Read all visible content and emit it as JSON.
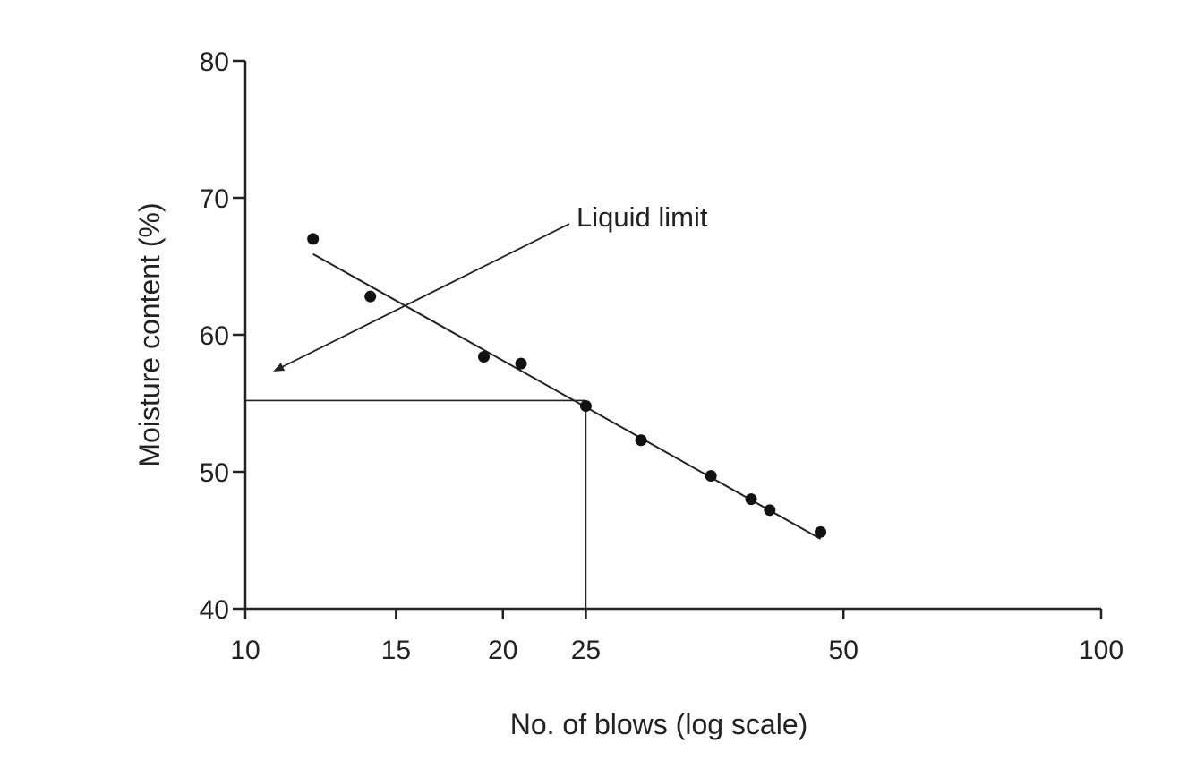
{
  "chart_data": {
    "type": "scatter",
    "title": "",
    "xlabel": "No. of blows (log scale)",
    "ylabel": "Moisture content (%)",
    "x_scale": "log",
    "xlim": [
      10,
      100
    ],
    "ylim": [
      40,
      80
    ],
    "x_ticks": [
      10,
      15,
      20,
      25,
      50,
      100
    ],
    "y_ticks": [
      40,
      50,
      60,
      70,
      80
    ],
    "grid": false,
    "series": [
      {
        "points": [
          {
            "x": 12,
            "y": 67
          },
          {
            "x": 14,
            "y": 62.8
          },
          {
            "x": 19,
            "y": 58.4
          },
          {
            "x": 21,
            "y": 57.9
          },
          {
            "x": 25,
            "y": 54.8
          },
          {
            "x": 29,
            "y": 52.3
          },
          {
            "x": 35,
            "y": 49.7
          },
          {
            "x": 39,
            "y": 48.0
          },
          {
            "x": 41,
            "y": 47.2
          },
          {
            "x": 47,
            "y": 45.6
          }
        ]
      }
    ],
    "fit_line": {
      "from": {
        "x": 12,
        "y": 65.9
      },
      "to": {
        "x": 47,
        "y": 45.1
      }
    },
    "reference_lines": {
      "horizontal_y": 55.2,
      "vertical_x": 25
    },
    "annotation": {
      "text": "Liquid limit",
      "arrow": true
    },
    "colors": {
      "ink": "#222222"
    }
  }
}
